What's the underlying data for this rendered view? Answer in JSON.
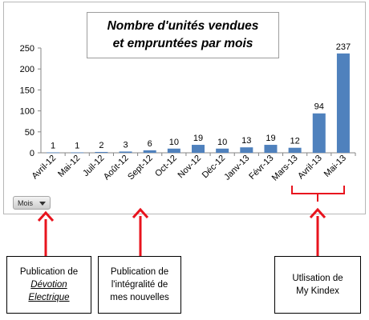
{
  "chart_data": {
    "type": "bar",
    "title_lines": [
      "Nombre d'unités vendues",
      "et empruntées par mois"
    ],
    "categories": [
      "Avril-12",
      "Mai-12",
      "Juil-12",
      "Août-12",
      "Sept-12",
      "Oct-12",
      "Nov-12",
      "Déc-12",
      "Janv-13",
      "Févr-13",
      "Mars-13",
      "Avril-13",
      "Mai-13"
    ],
    "values": [
      1,
      1,
      2,
      3,
      6,
      10,
      19,
      10,
      13,
      19,
      12,
      94,
      237
    ],
    "ylim": [
      0,
      250
    ],
    "yticks": [
      0,
      50,
      100,
      150,
      200,
      250
    ],
    "grid": false,
    "legend": "none",
    "bar_color": "#4f81bd",
    "annotation_color": "#e8141e"
  },
  "field_button": {
    "label": "Mois"
  },
  "captions": [
    {
      "line1": "Publication de",
      "line2": "Dévotion",
      "line3": "Electrique"
    },
    {
      "line1": "Publication de",
      "line2": "l'intégralité de",
      "line3": "mes nouvelles"
    },
    {
      "line1": "Utlisation de",
      "line2": "My Kindex"
    }
  ]
}
